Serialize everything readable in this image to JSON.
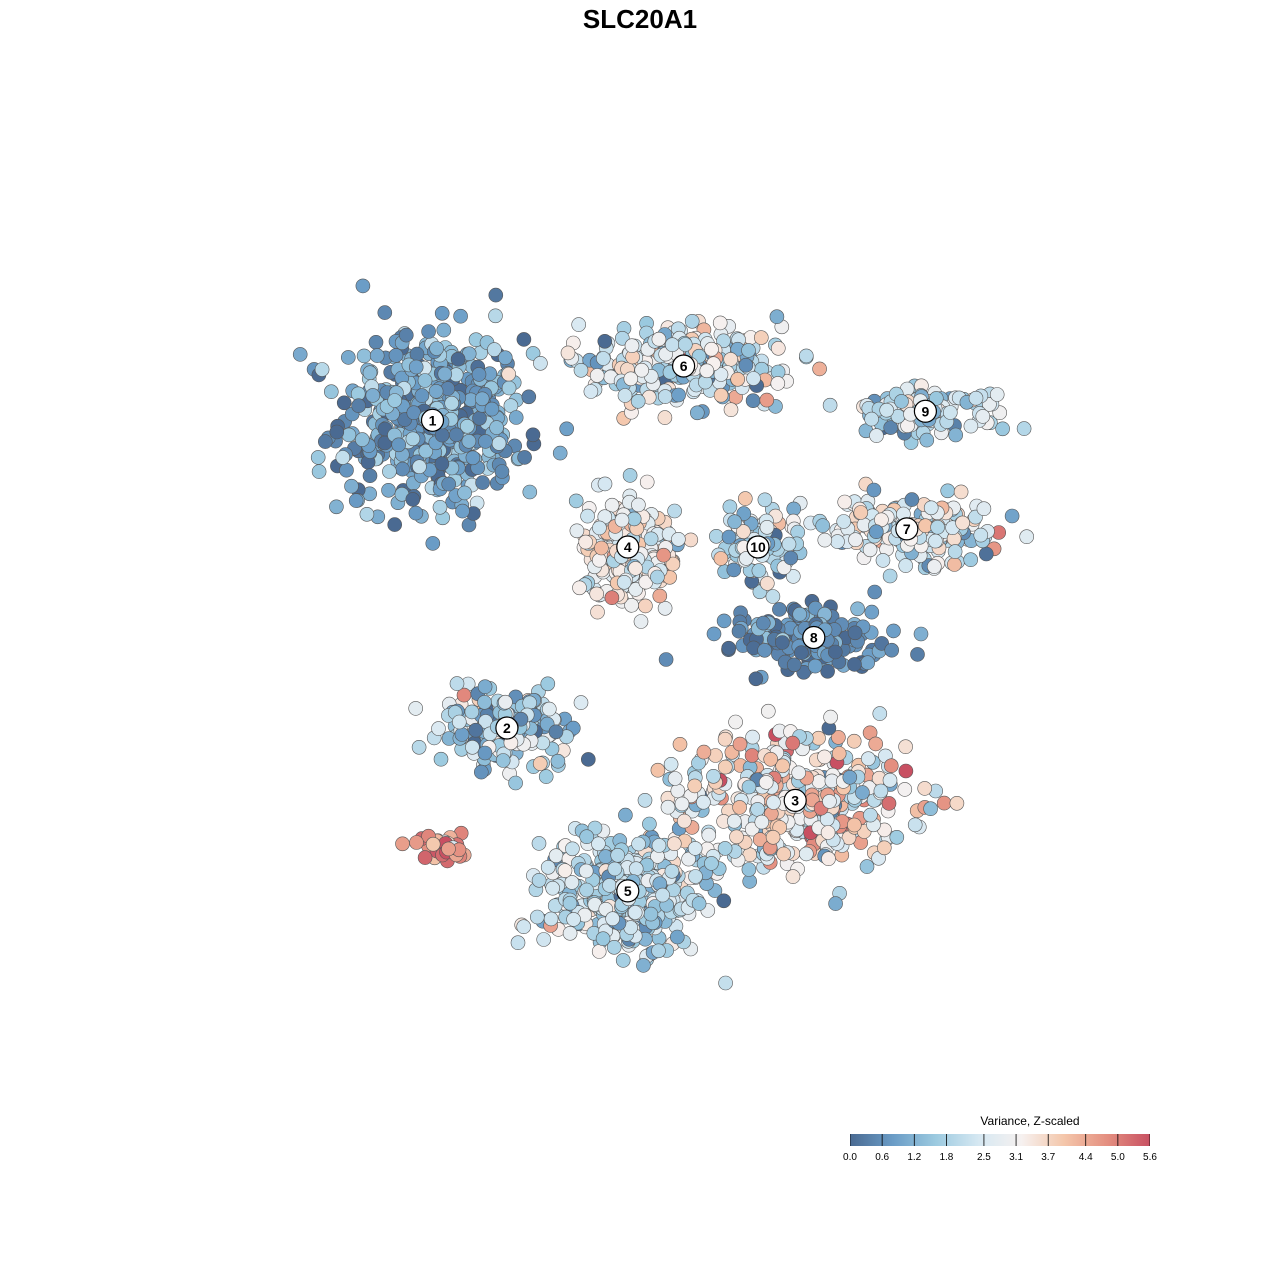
{
  "chart_data": {
    "type": "scatter",
    "title": "SLC20A1",
    "xlabel": "",
    "ylabel": "",
    "xlim": [
      0,
      100
    ],
    "ylim": [
      0,
      100
    ],
    "grid": false,
    "legend": {
      "title": "Variance, Z-scaled",
      "placement": "bottom-right",
      "ticks": [
        "0.0",
        "0.6",
        "1.2",
        "1.8",
        "2.5",
        "3.1",
        "3.7",
        "4.4",
        "5.0",
        "5.6"
      ],
      "range": [
        0.0,
        5.6
      ],
      "colors": [
        "#4a6a92",
        "#6a9cc6",
        "#9ccae0",
        "#d6e8f2",
        "#f6f1f0",
        "#f4c6aa",
        "#e48f80",
        "#c85062"
      ]
    },
    "clusters": [
      {
        "label": "1",
        "x": 25,
        "y": 74,
        "sx": 9,
        "sy": 9,
        "n": 520,
        "mean": 0.9,
        "spread": 0.6
      },
      {
        "label": "2",
        "x": 33,
        "y": 40,
        "sx": 7,
        "sy": 4,
        "n": 200,
        "mean": 1.8,
        "spread": 0.9
      },
      {
        "label": "3",
        "x": 64,
        "y": 32,
        "sx": 11,
        "sy": 7,
        "n": 420,
        "mean": 3.1,
        "spread": 1.1
      },
      {
        "label": "4",
        "x": 46,
        "y": 60,
        "sx": 5,
        "sy": 5,
        "n": 220,
        "mean": 3.0,
        "spread": 0.7
      },
      {
        "label": "5",
        "x": 46,
        "y": 22,
        "sx": 8,
        "sy": 6,
        "n": 420,
        "mean": 2.0,
        "spread": 0.7
      },
      {
        "label": "6",
        "x": 52,
        "y": 80,
        "sx": 10,
        "sy": 3.5,
        "n": 300,
        "mean": 2.3,
        "spread": 1.0
      },
      {
        "label": "7",
        "x": 76,
        "y": 62,
        "sx": 9,
        "sy": 3,
        "n": 200,
        "mean": 2.6,
        "spread": 0.9
      },
      {
        "label": "8",
        "x": 66,
        "y": 50,
        "sx": 8,
        "sy": 3,
        "n": 180,
        "mean": 0.4,
        "spread": 0.5
      },
      {
        "label": "9",
        "x": 78,
        "y": 75,
        "sx": 7,
        "sy": 2.5,
        "n": 120,
        "mean": 2.0,
        "spread": 0.8
      },
      {
        "label": "10",
        "x": 60,
        "y": 60,
        "sx": 4,
        "sy": 4,
        "n": 90,
        "mean": 1.9,
        "spread": 0.8
      }
    ],
    "outlier_group": {
      "x": 26,
      "y": 27,
      "sx": 2.5,
      "sy": 1.5,
      "n": 30,
      "mean": 4.6,
      "spread": 0.8
    }
  }
}
